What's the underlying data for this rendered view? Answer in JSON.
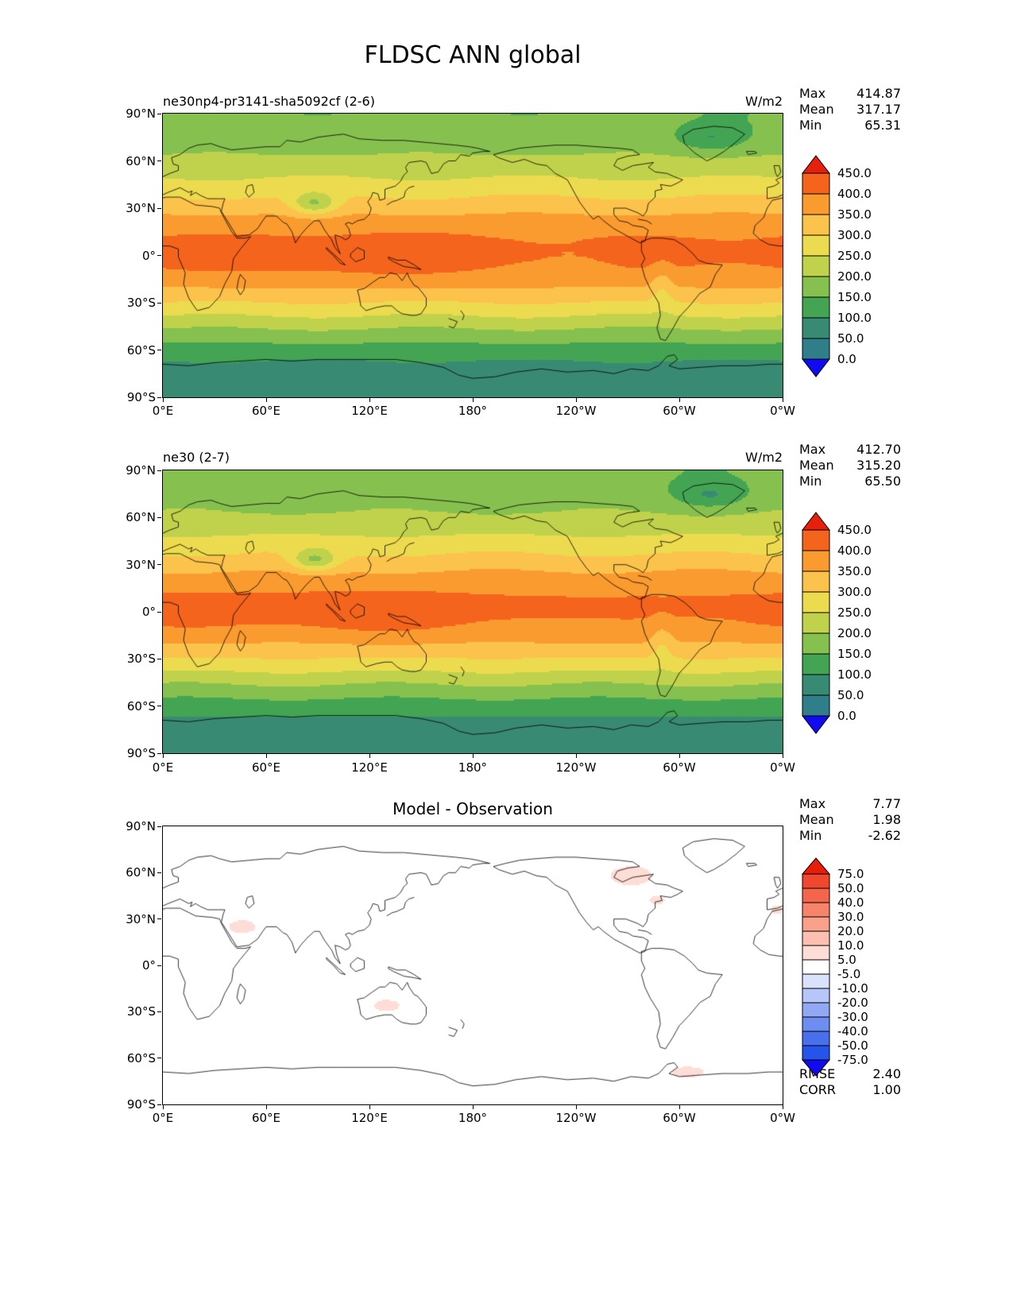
{
  "page": {
    "title": "FLDSC ANN global"
  },
  "axes": {
    "x_ticks": [
      "0°E",
      "60°E",
      "120°E",
      "180°",
      "120°W",
      "60°W",
      "0°W"
    ],
    "y_ticks": [
      "90°N",
      "60°N",
      "30°N",
      "0°",
      "30°S",
      "60°S",
      "90°S"
    ]
  },
  "panels": [
    {
      "title": "ne30np4-pr3141-sha5092cf (2-6)",
      "units": "W/m2",
      "stats": [
        {
          "label": "Max",
          "value": "414.87"
        },
        {
          "label": "Mean",
          "value": "317.17"
        },
        {
          "label": "Min",
          "value": "65.31"
        }
      ],
      "colorbar": {
        "labels": [
          "450.0",
          "400.0",
          "350.0",
          "300.0",
          "250.0",
          "200.0",
          "150.0",
          "100.0",
          "50.0",
          "0.0"
        ],
        "segment_colors_top_to_bottom": [
          "#f4641d",
          "#fa9b30",
          "#fcc34c",
          "#ecdb4f",
          "#c0d24b",
          "#86c04e",
          "#43a553",
          "#398a72",
          "#2f7e8a"
        ],
        "over_color": "#e6200c",
        "under_color": "#120af0"
      }
    },
    {
      "title": "ne30 (2-7)",
      "units": "W/m2",
      "stats": [
        {
          "label": "Max",
          "value": "412.70"
        },
        {
          "label": "Mean",
          "value": "315.20"
        },
        {
          "label": "Min",
          "value": "65.50"
        }
      ],
      "colorbar": {
        "labels": [
          "450.0",
          "400.0",
          "350.0",
          "300.0",
          "250.0",
          "200.0",
          "150.0",
          "100.0",
          "50.0",
          "0.0"
        ],
        "segment_colors_top_to_bottom": [
          "#f4641d",
          "#fa9b30",
          "#fcc34c",
          "#ecdb4f",
          "#c0d24b",
          "#86c04e",
          "#43a553",
          "#398a72",
          "#2f7e8a"
        ],
        "over_color": "#e6200c",
        "under_color": "#120af0"
      }
    },
    {
      "title": "Model - Observation",
      "units": "",
      "stats": [
        {
          "label": "Max",
          "value": "7.77"
        },
        {
          "label": "Mean",
          "value": "1.98"
        },
        {
          "label": "Min",
          "value": "-2.62"
        }
      ],
      "colorbar": {
        "labels": [
          "75.0",
          "50.0",
          "40.0",
          "30.0",
          "20.0",
          "10.0",
          "5.0",
          "-5.0",
          "-10.0",
          "-20.0",
          "-30.0",
          "-40.0",
          "-50.0",
          "-75.0"
        ],
        "segment_colors_top_to_bottom": [
          "#f0482e",
          "#f4664b",
          "#f7836a",
          "#faa18c",
          "#fcbfb0",
          "#fdddd5",
          "#ffffff",
          "#dae2fb",
          "#b6c6f8",
          "#91a9f4",
          "#6d8df1",
          "#4870ed",
          "#2454ea"
        ],
        "over_color": "#e81e09",
        "under_color": "#120af0"
      },
      "footer": [
        {
          "label": "RMSE",
          "value": "2.40"
        },
        {
          "label": "CORR",
          "value": "1.00"
        }
      ]
    }
  ],
  "chart_data": [
    {
      "type": "heatmap",
      "map_type": "filled_contour_global_map",
      "variable": "FLDSC",
      "season": "ANN",
      "domain": "global",
      "title": "ne30np4-pr3141-sha5092cf (2-6)",
      "units": "W/m2",
      "stats": {
        "max": 414.87,
        "mean": 317.17,
        "min": 65.31
      },
      "contour_levels": [
        0,
        50,
        100,
        150,
        200,
        250,
        300,
        350,
        400,
        450
      ],
      "lon_ticks_deg": [
        0,
        60,
        120,
        180,
        240,
        300,
        360
      ],
      "lat_ticks_deg": [
        90,
        60,
        30,
        0,
        -30,
        -60,
        -90
      ],
      "approx_zonal_mean": {
        "lat": [
          -90,
          -75,
          -60,
          -45,
          -30,
          -15,
          0,
          15,
          30,
          45,
          60,
          75,
          90
        ],
        "value": [
          68,
          80,
          128,
          256,
          305,
          372,
          416,
          392,
          330,
          266,
          213,
          176,
          155
        ]
      },
      "notable_features": "Tropical maximum 400-450 over Indian Ocean / warm pool; minima over Antarctica (50-100), Tibet and Greenland depressions; zonally banded structure."
    },
    {
      "type": "heatmap",
      "map_type": "filled_contour_global_map",
      "variable": "FLDSC",
      "season": "ANN",
      "domain": "global",
      "title": "ne30 (2-7)",
      "units": "W/m2",
      "stats": {
        "max": 412.7,
        "mean": 315.2,
        "min": 65.5
      },
      "contour_levels": [
        0,
        50,
        100,
        150,
        200,
        250,
        300,
        350,
        400,
        450
      ],
      "lon_ticks_deg": [
        0,
        60,
        120,
        180,
        240,
        300,
        360
      ],
      "lat_ticks_deg": [
        90,
        60,
        30,
        0,
        -30,
        -60,
        -90
      ],
      "approx_zonal_mean": {
        "lat": [
          -90,
          -75,
          -60,
          -45,
          -30,
          -15,
          0,
          15,
          30,
          45,
          60,
          75,
          90
        ],
        "value": [
          66,
          78,
          126,
          254,
          303,
          370,
          414,
          390,
          328,
          264,
          211,
          174,
          153
        ]
      },
      "notable_features": "Nearly identical pattern to the first panel."
    },
    {
      "type": "heatmap",
      "map_type": "filled_contour_global_map",
      "title": "Model - Observation",
      "units": "W/m2",
      "stats": {
        "max": 7.77,
        "mean": 1.98,
        "min": -2.62,
        "rmse": 2.4,
        "corr": 1.0
      },
      "contour_levels": [
        -75,
        -50,
        -40,
        -30,
        -20,
        -10,
        -5,
        5,
        10,
        20,
        30,
        40,
        50,
        75
      ],
      "lon_ticks_deg": [
        0,
        60,
        120,
        180,
        240,
        300,
        360
      ],
      "lat_ticks_deg": [
        90,
        60,
        30,
        0,
        -30,
        -60,
        -90
      ],
      "notable_features": "Difference mostly within ±5 (white); faint positive 5-10 patches over central Canada / Hudson Bay, Arabian Peninsula, central Australia, NE US coast, NE Atlantic and Antarctic coast near 60°W."
    }
  ]
}
